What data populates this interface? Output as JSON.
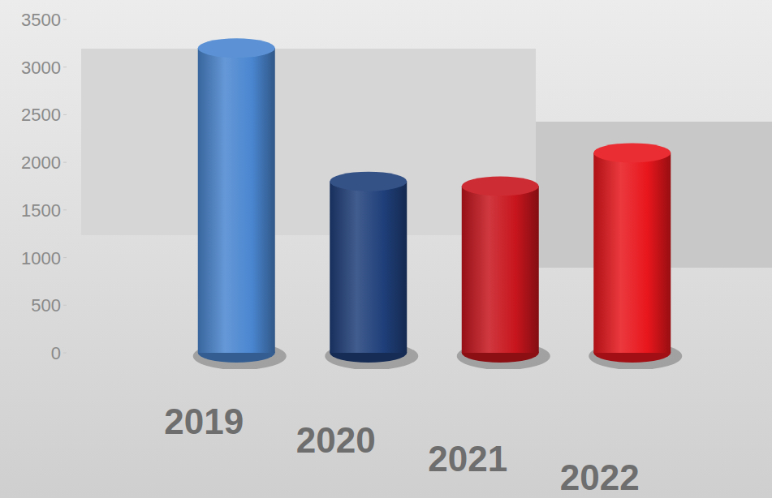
{
  "chart_data": {
    "type": "bar",
    "categories": [
      "2019",
      "2020",
      "2021",
      "2022"
    ],
    "values": [
      3200,
      1800,
      1750,
      2100
    ],
    "colors": [
      "#4a86d0",
      "#1f3f7a",
      "#c8151d",
      "#e8161c"
    ],
    "ylim": [
      0,
      3500
    ],
    "yticks": [
      0,
      500,
      1000,
      1500,
      2000,
      2500,
      3000,
      3500
    ],
    "grid": false
  }
}
